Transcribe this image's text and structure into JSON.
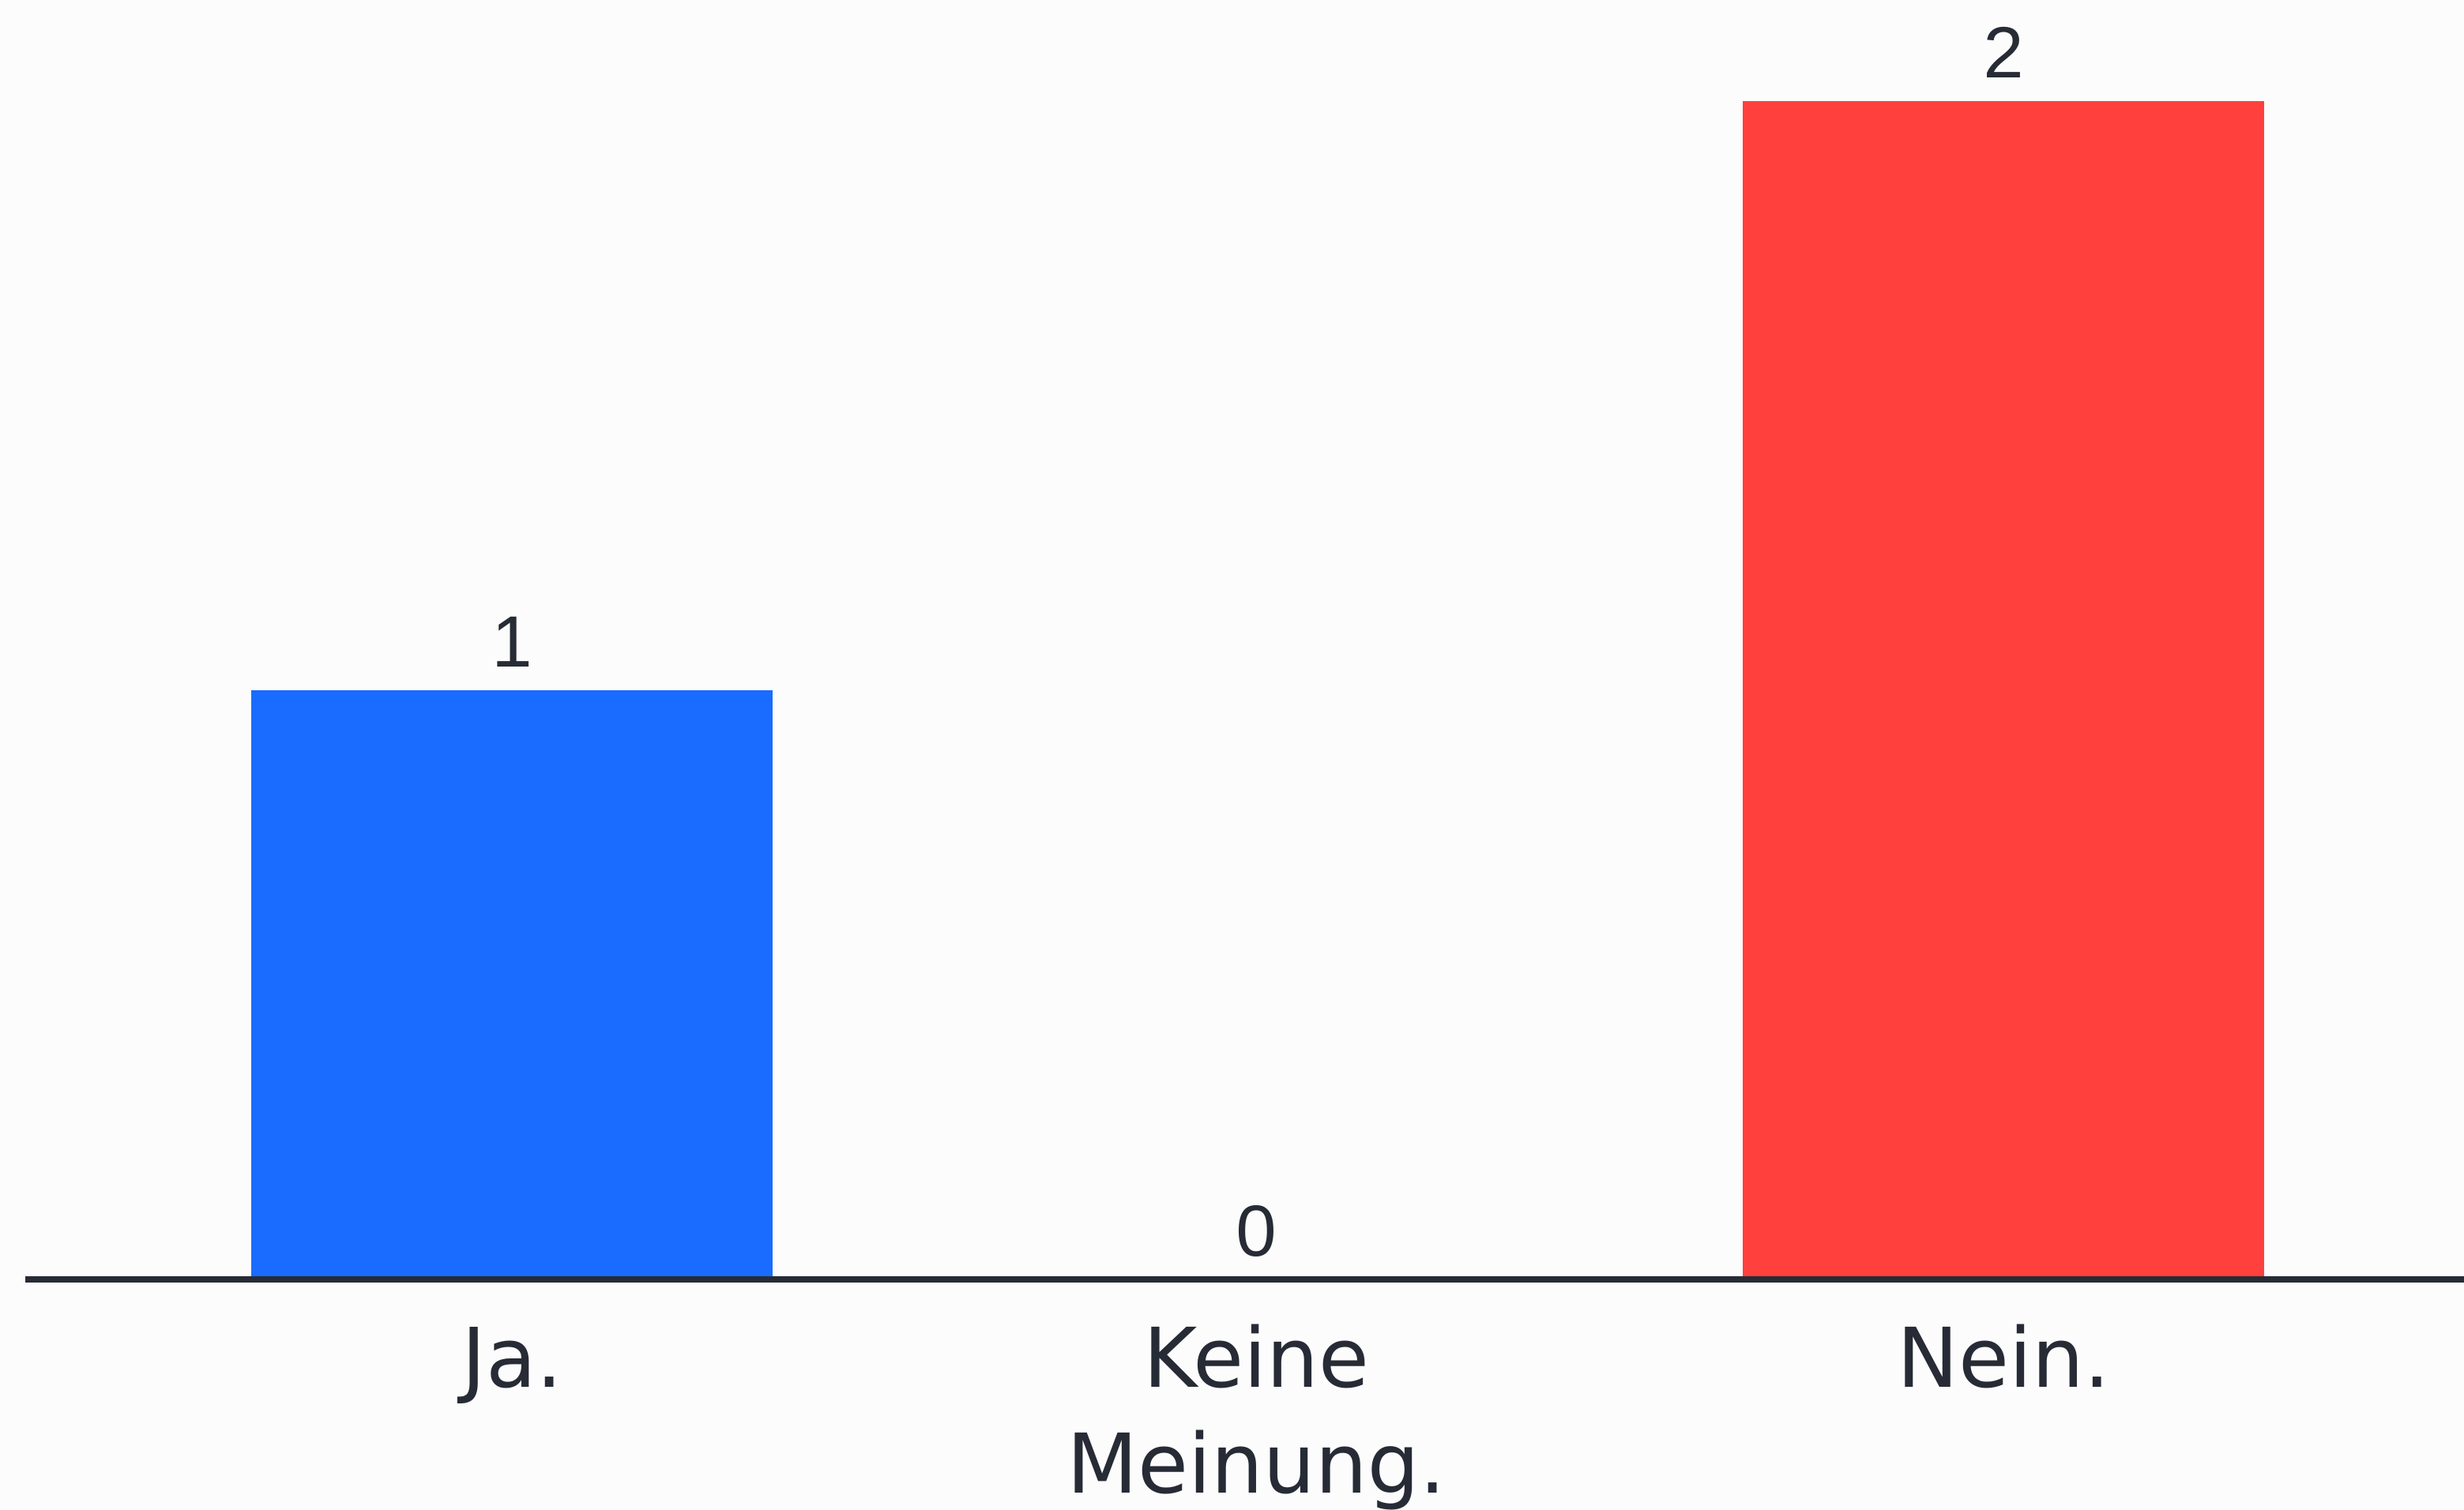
{
  "chart_data": {
    "type": "bar",
    "categories": [
      "Ja.",
      "Keine Meinung.",
      "Nein."
    ],
    "category_lines": [
      [
        "Ja."
      ],
      [
        "Keine",
        "Meinung."
      ],
      [
        "Nein."
      ]
    ],
    "values": [
      1,
      0,
      2
    ],
    "value_labels": [
      "1",
      "0",
      "2"
    ],
    "colors": [
      "#1a6bff",
      "#9aa0a8",
      "#ff403c"
    ],
    "axis_color": "#262b35",
    "ylim": [
      0,
      2
    ],
    "grid": false,
    "legend": "none",
    "title": "",
    "xlabel": "",
    "ylabel": ""
  }
}
